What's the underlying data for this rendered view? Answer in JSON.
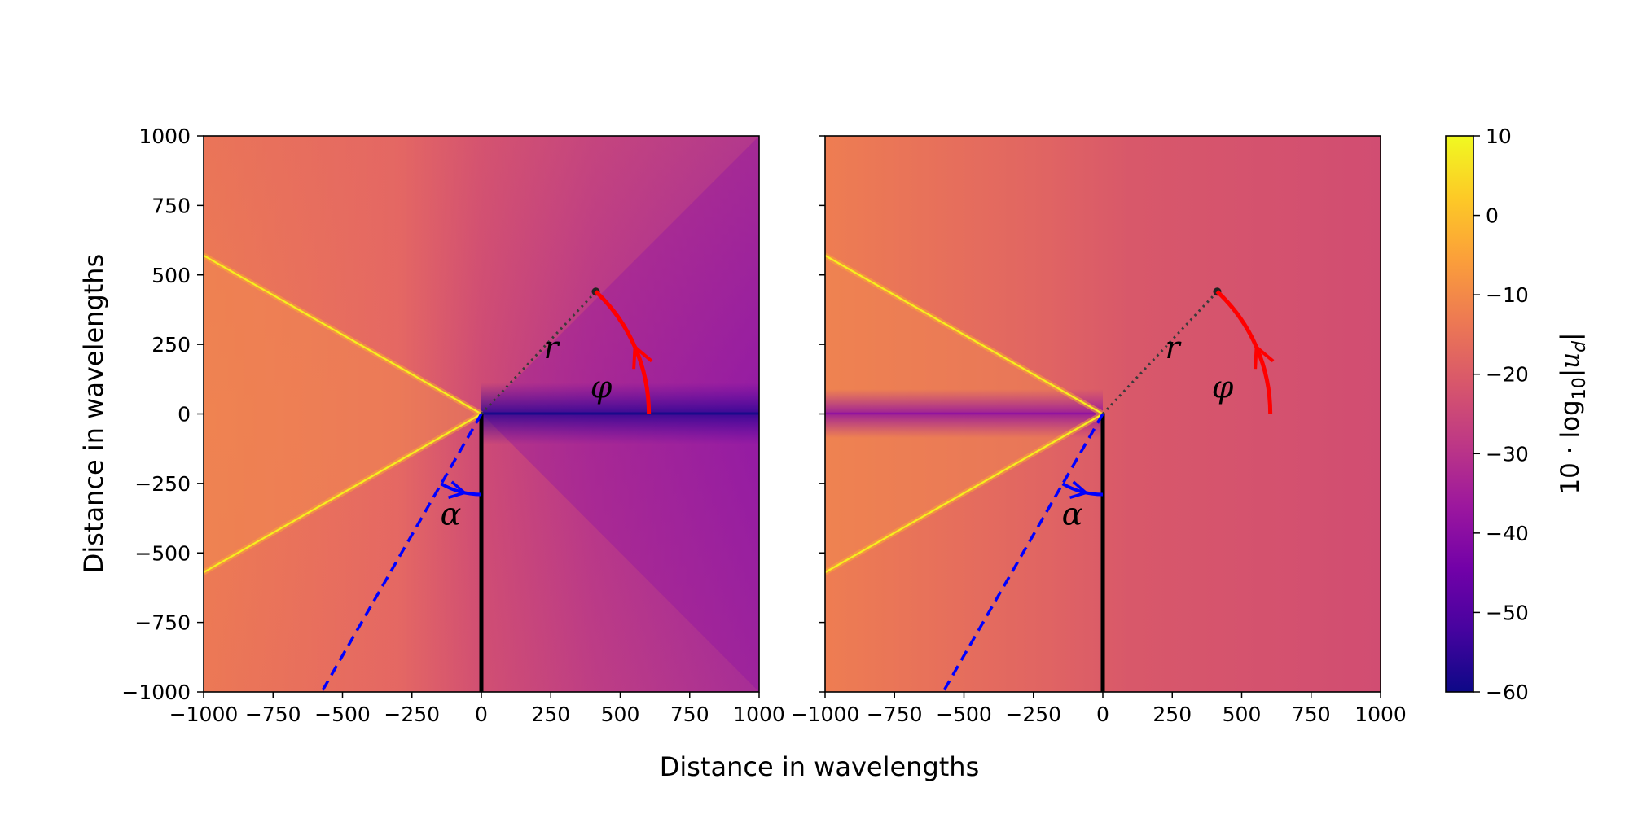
{
  "figure": {
    "xlabel": "Distance in wavelengths",
    "ylabel": "Distance in wavelengths"
  },
  "colors": {
    "colormap": [
      "#0d0887",
      "#46039f",
      "#7201a8",
      "#9c179e",
      "#bd3786",
      "#d8576b",
      "#ed7953",
      "#fb9f3a",
      "#fdca26",
      "#f0f921"
    ],
    "arc_phi": "#ff0000",
    "arc_alpha": "#0000ff",
    "screen": "#000000",
    "ray": "#3a3a3a"
  },
  "chart_data": [
    {
      "type": "heatmap",
      "name": "left",
      "xlim": [
        -1000,
        1000
      ],
      "ylim": [
        -1000,
        1000
      ],
      "xticks": [
        -1000,
        -750,
        -500,
        -250,
        0,
        250,
        500,
        750,
        1000
      ],
      "yticks": [
        -1000,
        -750,
        -500,
        -250,
        0,
        250,
        500,
        750,
        1000
      ],
      "xtick_labels": [
        "−1000",
        "−750",
        "−500",
        "−250",
        "0",
        "250",
        "500",
        "750",
        "1000"
      ],
      "ytick_labels": [
        "−1000",
        "−750",
        "−500",
        "−250",
        "0",
        "250",
        "500",
        "750",
        "1000"
      ],
      "shadow_side": "right",
      "levels_db": {
        "illuminated": -12,
        "mid_left": -18,
        "mid_right": -32,
        "shadow_line": -58
      },
      "bright_lines": [
        {
          "x": [
            0,
            -1000
          ],
          "y": [
            0,
            570
          ]
        },
        {
          "x": [
            0,
            -1000
          ],
          "y": [
            0,
            -570
          ]
        }
      ],
      "screen_line": {
        "x": [
          0,
          0
        ],
        "y": [
          0,
          -1000
        ]
      },
      "incident_dashed": {
        "x": [
          0,
          -575
        ],
        "y": [
          0,
          -1000
        ]
      },
      "ray_r": {
        "x": [
          0,
          412
        ],
        "y": [
          0,
          440
        ],
        "label": "r"
      },
      "phi_arc": {
        "radius": 603,
        "from_deg": 0,
        "to_deg": 47,
        "label": "φ"
      },
      "alpha_arc": {
        "radius": 290,
        "from_deg": 240,
        "to_deg": 270,
        "label": "α"
      }
    },
    {
      "type": "heatmap",
      "name": "right",
      "xlim": [
        -1000,
        1000
      ],
      "ylim": [
        -1000,
        1000
      ],
      "xticks": [
        -1000,
        -750,
        -500,
        -250,
        0,
        250,
        500,
        750,
        1000
      ],
      "yticks": [
        -1000,
        -750,
        -500,
        -250,
        0,
        250,
        500,
        750,
        1000
      ],
      "xtick_labels": [
        "−1000",
        "−750",
        "−500",
        "−250",
        "0",
        "250",
        "500",
        "750",
        "1000"
      ],
      "ytick_labels": [],
      "shadow_side": "left",
      "levels_db": {
        "illuminated": -12,
        "mid_left": -17,
        "mid_right": -23,
        "shadow_line": -40
      },
      "bright_lines": [
        {
          "x": [
            0,
            -1000
          ],
          "y": [
            0,
            570
          ]
        },
        {
          "x": [
            0,
            -1000
          ],
          "y": [
            0,
            -570
          ]
        }
      ],
      "screen_line": {
        "x": [
          0,
          0
        ],
        "y": [
          0,
          -1000
        ]
      },
      "incident_dashed": {
        "x": [
          0,
          -575
        ],
        "y": [
          0,
          -1000
        ]
      },
      "ray_r": {
        "x": [
          0,
          412
        ],
        "y": [
          0,
          440
        ],
        "label": "r"
      },
      "phi_arc": {
        "radius": 603,
        "from_deg": 0,
        "to_deg": 47,
        "label": "φ"
      },
      "alpha_arc": {
        "radius": 290,
        "from_deg": 240,
        "to_deg": 270,
        "label": "α"
      }
    }
  ],
  "colorbar": {
    "min": -60,
    "max": 10,
    "ticks": [
      10,
      0,
      -10,
      -20,
      -30,
      -40,
      -50,
      -60
    ],
    "tick_labels": [
      "10",
      "0",
      "−10",
      "−20",
      "−30",
      "−40",
      "−50",
      "−60"
    ],
    "label": "10 · log₁₀|u_d|",
    "label_prefix": "10 · log",
    "label_sub": "10",
    "label_var": "u",
    "label_var_sub": "d"
  }
}
